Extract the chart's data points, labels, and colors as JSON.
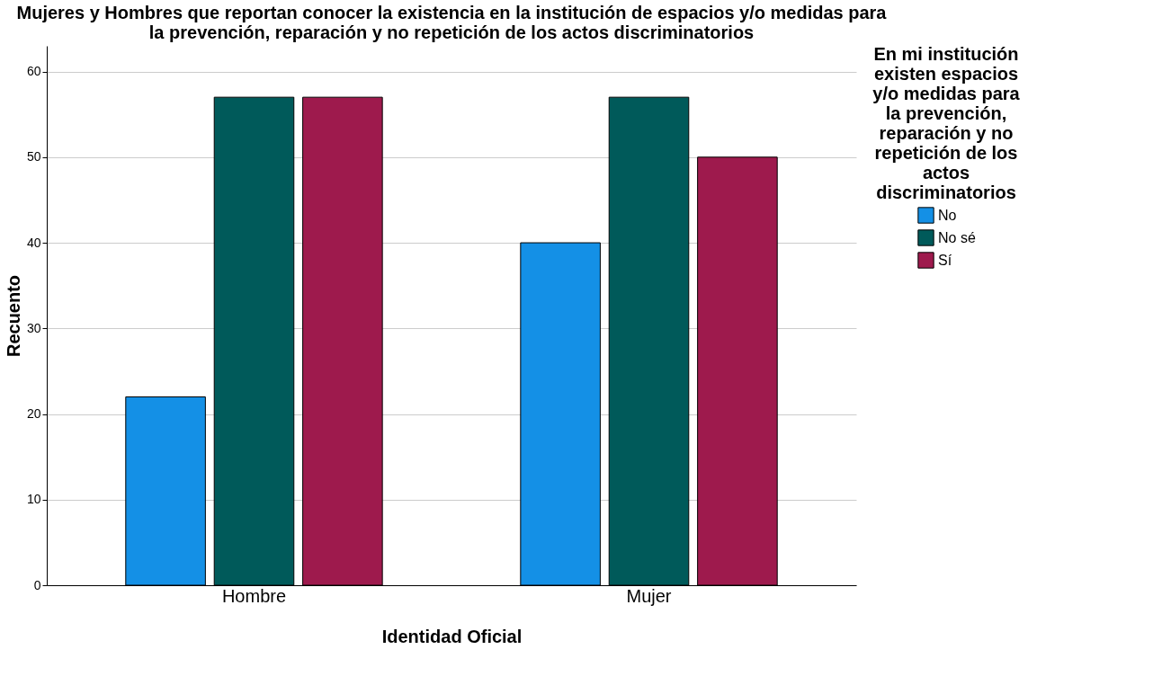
{
  "chart_data": {
    "type": "bar",
    "title": "Mujeres y Hombres que reportan conocer la existencia en la institución de espacios y/o medidas para la prevención, reparación y no repetición de los actos discriminatorios",
    "xlabel": "Identidad Oficial",
    "ylabel": "Recuento",
    "legend_title": "En mi institución existen espacios y/o medidas para la prevención, reparación y no repetición de los actos discriminatorios",
    "categories": [
      "Hombre",
      "Mujer"
    ],
    "series": [
      {
        "name": "No",
        "color": "#1490e6",
        "values": [
          22,
          40
        ]
      },
      {
        "name": "No sé",
        "color": "#005a5a",
        "values": [
          57,
          57
        ]
      },
      {
        "name": "Sí",
        "color": "#9e1a4d",
        "values": [
          57,
          50
        ]
      }
    ],
    "ylim": [
      0,
      63
    ],
    "yticks": [
      0,
      10,
      20,
      30,
      40,
      50,
      60
    ],
    "grid": "y",
    "legend": "right"
  }
}
